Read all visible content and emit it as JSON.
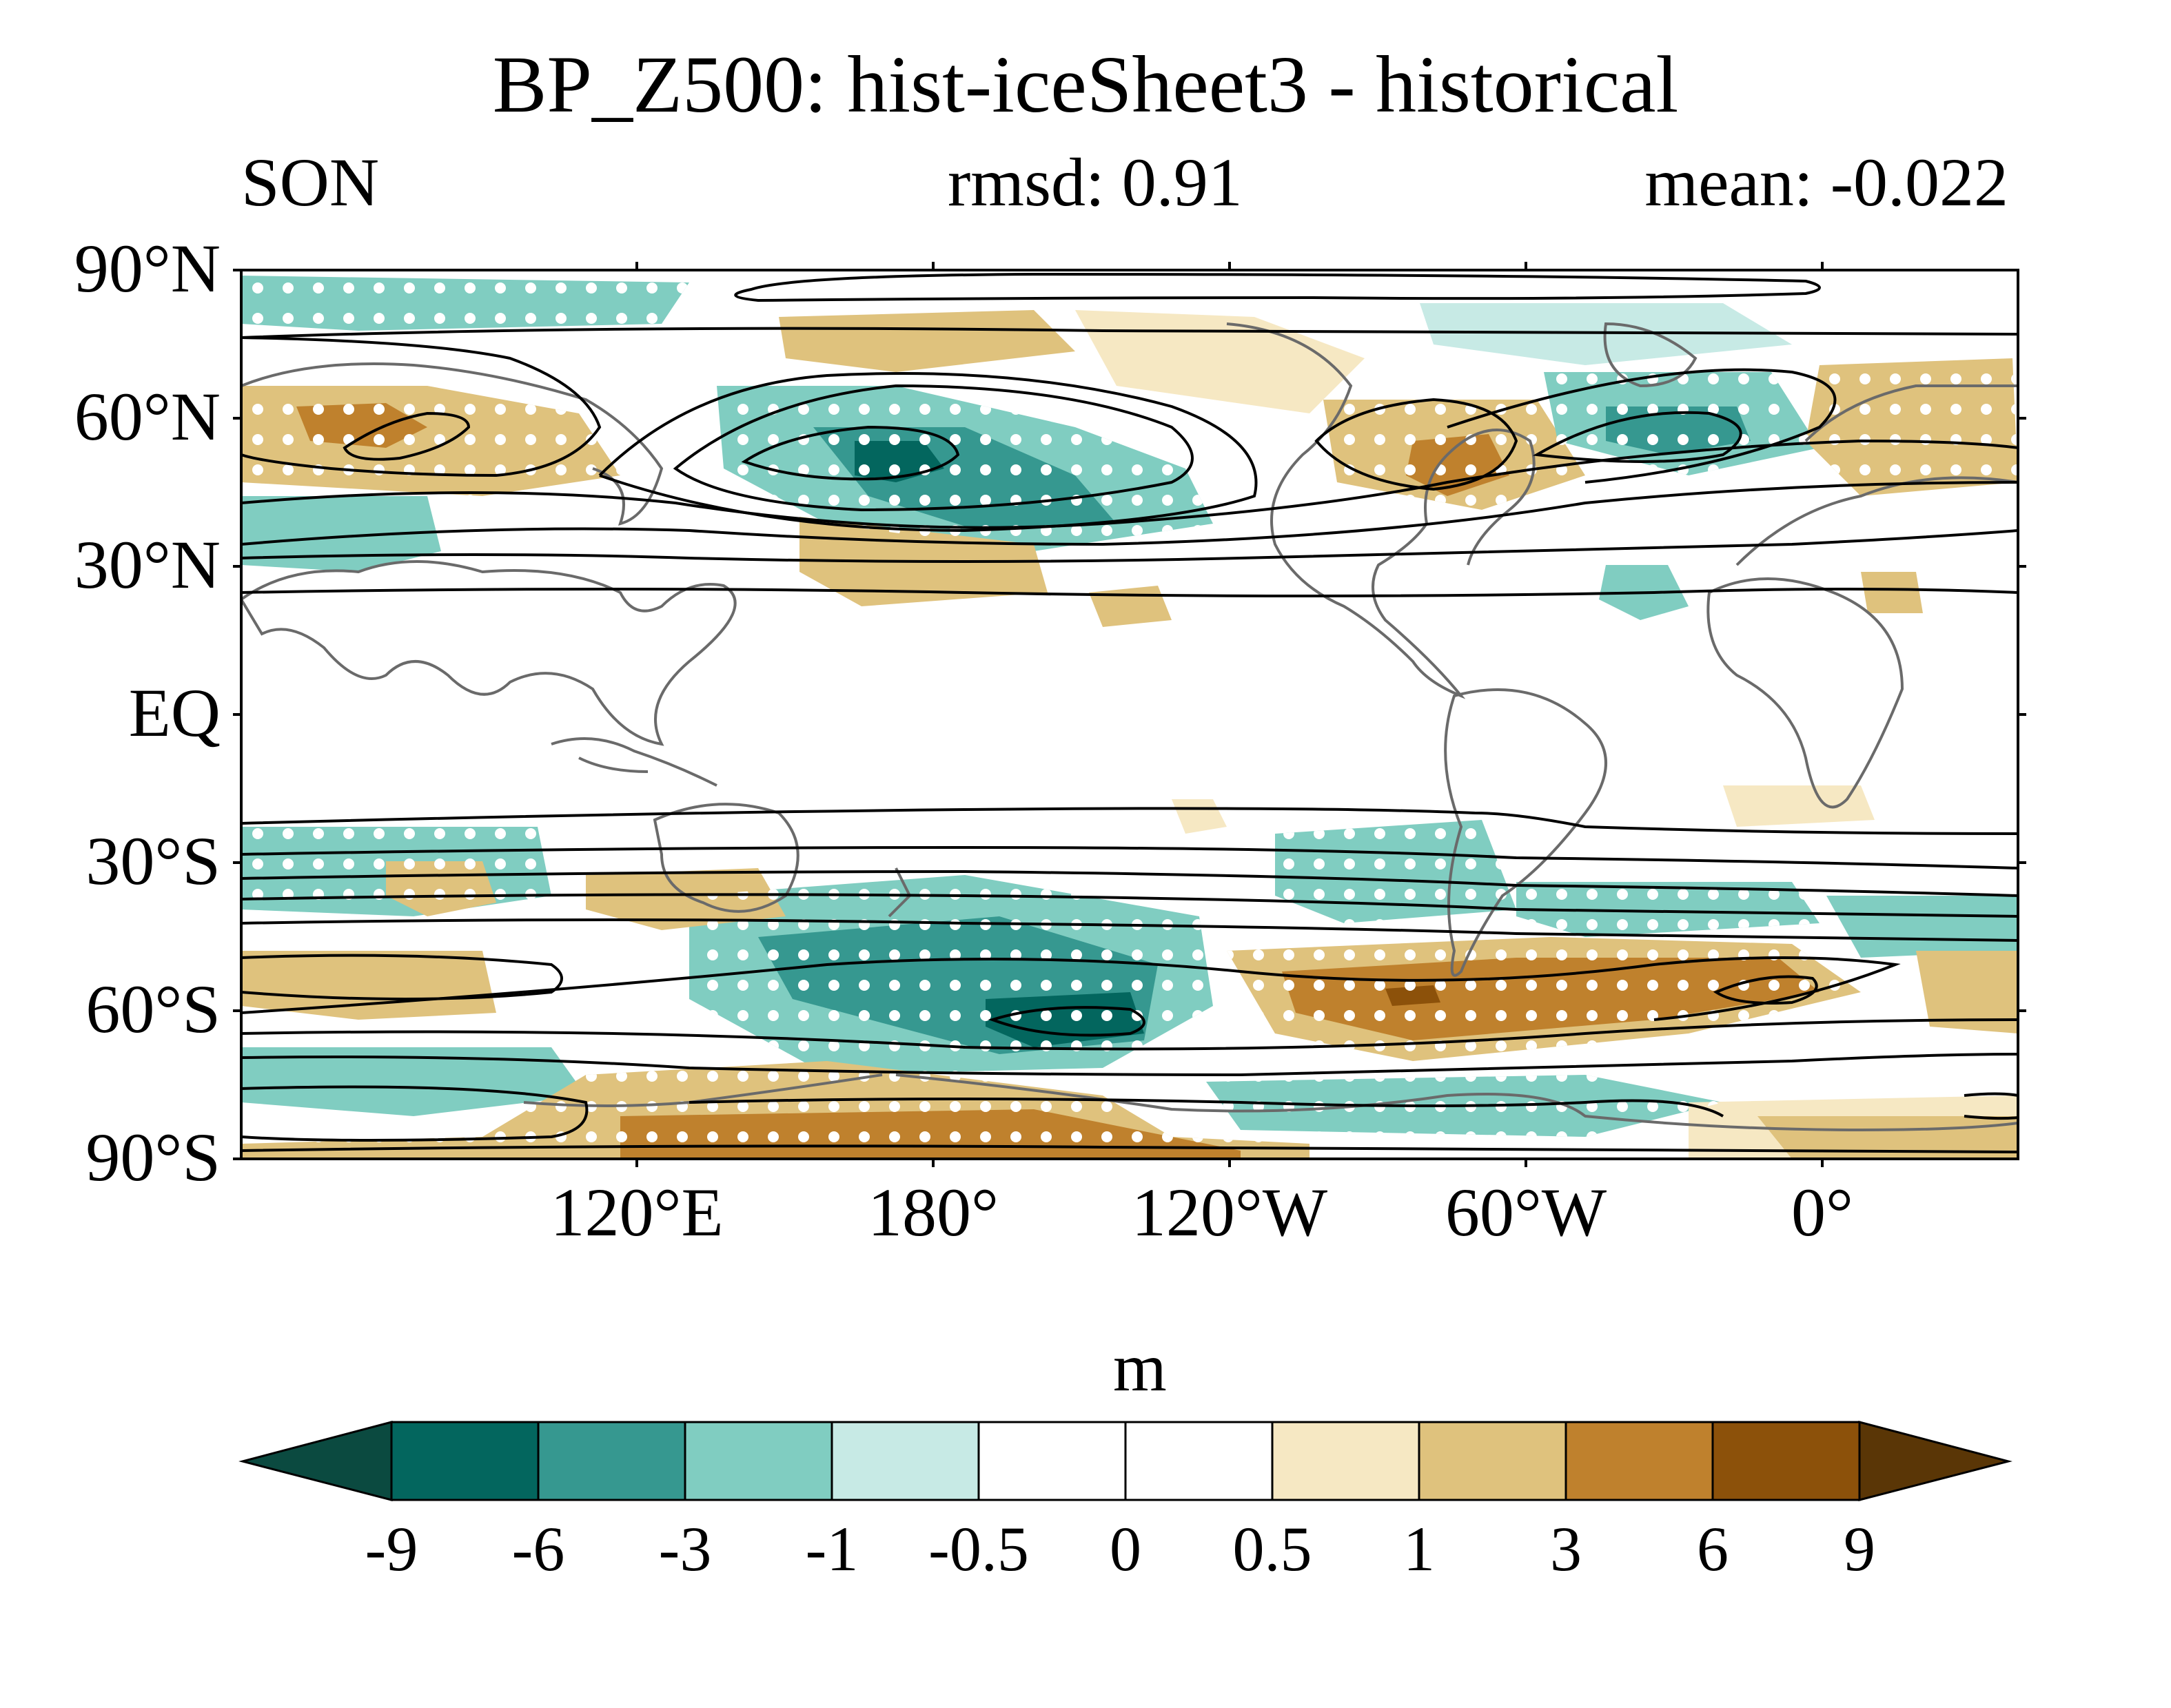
{
  "title": "BP_Z500: hist-iceSheet3 - historical",
  "season": "SON",
  "rmsd_text": "rmsd: 0.91",
  "mean_text": "mean: -0.022",
  "lat_labels": [
    "90°N",
    "60°N",
    "30°N",
    "EQ",
    "30°S",
    "60°S",
    "90°S"
  ],
  "lon_labels": [
    "120°E",
    "180°",
    "120°W",
    "60°W",
    "0°"
  ],
  "colorbar": {
    "unit": "m",
    "levels": [
      "-9",
      "-6",
      "-3",
      "-1",
      "-0.5",
      "0",
      "0.5",
      "1",
      "3",
      "6",
      "9"
    ],
    "colors": [
      "#0b4a40",
      "#03665e",
      "#369890",
      "#80cdc1",
      "#c7eae5",
      "#ffffff",
      "#ffffff",
      "#f6e8c3",
      "#dfc27d",
      "#bf812d",
      "#8c510a",
      "#5a3606"
    ]
  }
}
